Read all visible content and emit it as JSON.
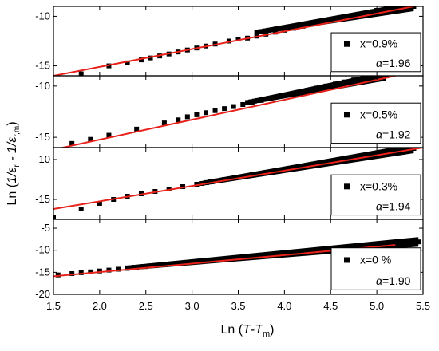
{
  "chart_data": [
    {
      "type": "scatter",
      "panel": 1,
      "xlim": [
        1.5,
        5.5
      ],
      "ylim": [
        -16,
        -9
      ],
      "yticks": [
        -10,
        -15
      ],
      "legend": {
        "marker_label": "x=0.9%",
        "alpha_symbol": "α",
        "alpha_value": "=1.96",
        "placement": "right"
      },
      "series": [
        {
          "name": "x=0.9%",
          "kind": "points",
          "color": "#000000",
          "x": [
            1.8,
            2.1,
            2.3,
            2.45,
            2.55,
            2.65,
            2.75,
            2.85,
            2.95,
            3.05,
            3.15,
            3.25,
            3.4,
            3.5,
            3.6,
            3.7,
            3.8,
            3.9,
            4.0,
            4.1,
            4.2,
            4.3,
            4.4,
            4.5,
            4.6,
            4.7,
            4.8,
            4.9,
            5.0,
            5.1
          ],
          "y": [
            -15.8,
            -15.0,
            -14.7,
            -14.4,
            -14.2,
            -14.0,
            -13.8,
            -13.6,
            -13.4,
            -13.2,
            -13.0,
            -12.8,
            -12.5,
            -12.3,
            -12.2,
            -12.0,
            -11.8,
            -11.6,
            -11.4,
            -11.2,
            -11.0,
            -10.8,
            -10.6,
            -10.4,
            -10.2,
            -10.0,
            -9.8,
            -9.6,
            -9.4,
            -9.2
          ]
        },
        {
          "name": "",
          "kind": "dense",
          "color": "#000000",
          "x": [
            3.7,
            5.4
          ],
          "y": [
            -11.6,
            -9.0
          ]
        },
        {
          "name": "",
          "kind": "fit",
          "color": "#e8221b",
          "x": [
            1.5,
            5.4
          ],
          "y": [
            -16.0,
            -9.0
          ]
        }
      ]
    },
    {
      "type": "scatter",
      "panel": 2,
      "xlim": [
        1.5,
        5.5
      ],
      "ylim": [
        -16,
        -9
      ],
      "yticks": [
        -10,
        -15
      ],
      "legend": {
        "marker_label": "x=0.5%",
        "alpha_symbol": "α",
        "alpha_value": "=1.92",
        "placement": "right"
      },
      "series": [
        {
          "name": "x=0.5%",
          "kind": "points",
          "color": "#000000",
          "x": [
            1.7,
            1.9,
            2.1,
            2.4,
            2.7,
            2.85,
            2.95,
            3.05,
            3.15,
            3.25,
            3.35,
            3.45,
            3.55,
            3.65,
            3.75,
            3.85,
            3.95,
            4.05,
            4.15,
            4.25,
            4.35,
            4.45,
            4.55,
            4.65,
            4.75,
            4.85
          ],
          "y": [
            -15.6,
            -15.2,
            -14.8,
            -14.2,
            -13.6,
            -13.3,
            -13.0,
            -12.8,
            -12.6,
            -12.4,
            -12.2,
            -12.0,
            -11.8,
            -11.6,
            -11.4,
            -11.2,
            -11.0,
            -10.8,
            -10.6,
            -10.4,
            -10.2,
            -10.0,
            -9.8,
            -9.6,
            -9.4,
            -9.2
          ]
        },
        {
          "name": "",
          "kind": "dense",
          "color": "#000000",
          "x": [
            3.6,
            5.1
          ],
          "y": [
            -11.6,
            -9.0
          ]
        },
        {
          "name": "",
          "kind": "fit",
          "color": "#e8221b",
          "x": [
            1.5,
            5.2
          ],
          "y": [
            -16.2,
            -9.0
          ]
        }
      ]
    },
    {
      "type": "scatter",
      "panel": 3,
      "xlim": [
        1.5,
        5.5
      ],
      "ylim": [
        -17.5,
        -8.5
      ],
      "yticks": [
        -10,
        -15
      ],
      "legend": {
        "marker_label": "x=0.3%",
        "alpha_symbol": "α",
        "alpha_value": "=1.94",
        "placement": "right"
      },
      "series": [
        {
          "name": "x=0.3%",
          "kind": "points",
          "color": "#000000",
          "x": [
            1.5,
            1.8,
            2.0,
            2.15,
            2.3,
            2.45,
            2.6,
            2.75,
            2.9,
            3.05,
            3.2,
            3.35,
            3.5,
            3.65,
            3.8,
            3.95,
            4.1,
            4.25,
            4.4,
            4.55,
            4.7,
            4.85,
            5.0,
            5.15
          ],
          "y": [
            -17.2,
            -16.2,
            -15.5,
            -15.0,
            -14.6,
            -14.3,
            -14.0,
            -13.7,
            -13.4,
            -13.1,
            -12.8,
            -12.5,
            -12.2,
            -11.9,
            -11.6,
            -11.3,
            -11.0,
            -10.7,
            -10.4,
            -10.1,
            -9.8,
            -9.5,
            -9.2,
            -8.9
          ]
        },
        {
          "name": "",
          "kind": "dense",
          "color": "#000000",
          "x": [
            3.1,
            5.4
          ],
          "y": [
            -13.0,
            -8.6
          ]
        },
        {
          "name": "",
          "kind": "fit",
          "color": "#e8221b",
          "x": [
            1.5,
            5.5
          ],
          "y": [
            -16.2,
            -8.5
          ]
        }
      ]
    },
    {
      "type": "scatter",
      "panel": 4,
      "xlim": [
        1.5,
        5.5
      ],
      "ylim": [
        -20,
        -3
      ],
      "yticks": [
        -5,
        -10,
        -15,
        -20
      ],
      "legend": {
        "marker_label": "x=0 %",
        "alpha_symbol": "α",
        "alpha_value": "=1.90",
        "placement": "right"
      },
      "series": [
        {
          "name": "x=0 %",
          "kind": "points",
          "color": "#000000",
          "x": [
            1.55,
            1.7,
            1.8,
            1.9,
            2.0,
            2.1,
            2.2,
            2.3,
            2.4,
            2.5,
            2.6,
            2.7,
            2.8
          ],
          "y": [
            -15.6,
            -15.3,
            -15.1,
            -14.9,
            -14.7,
            -14.5,
            -14.3,
            -14.1,
            -13.9,
            -13.7,
            -13.5,
            -13.3,
            -13.1
          ]
        },
        {
          "name": "",
          "kind": "dense",
          "color": "#000000",
          "x": [
            2.3,
            5.45
          ],
          "y": [
            -14.0,
            -8.1
          ]
        },
        {
          "name": "",
          "kind": "fit",
          "color": "#e8221b",
          "x": [
            1.5,
            5.2
          ],
          "y": [
            -15.9,
            -8.8
          ]
        }
      ]
    }
  ],
  "axes": {
    "xticks": [
      "1.5",
      "2.0",
      "2.5",
      "3.0",
      "3.5",
      "4.0",
      "4.5",
      "5.0",
      "5.5"
    ],
    "xlabel": {
      "prefix": "Ln (",
      "var": "T",
      "mid": "-",
      "var2": "T",
      "sub": "m",
      "suffix": ")"
    },
    "ylabel": {
      "prefix": "Ln (",
      "body1": "1/ε",
      "sub1": "r",
      "mid": " - 1/ε",
      "sub2": "r,m",
      "suffix": ")"
    }
  }
}
